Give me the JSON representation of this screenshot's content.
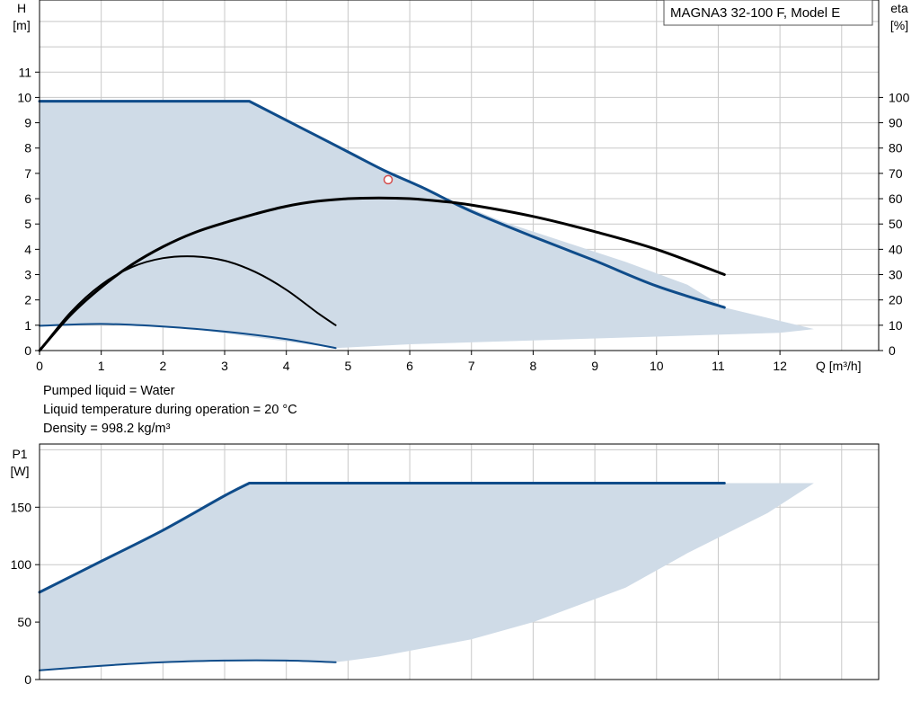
{
  "model_label": "MAGNA3 32-100 F, Model E",
  "notes": [
    "Pumped liquid = Water",
    "Liquid temperature during operation = 20 °C",
    "Density = 998.2 kg/m³"
  ],
  "colors": {
    "envelope": "#cfdbe7",
    "curve_blue": "#0f4c8a",
    "curve_black": "#000000",
    "duty_point": "#d24a4a"
  },
  "chart_data": [
    {
      "id": "head-chart",
      "type": "line",
      "x_axis": {
        "label": "Q [m³/h]",
        "range": [
          0,
          13.6
        ],
        "ticks": [
          0,
          1,
          2,
          3,
          4,
          5,
          6,
          7,
          8,
          9,
          10,
          11,
          12
        ]
      },
      "y_axis": {
        "label_line1": "H",
        "label_line2": "[m]",
        "range": [
          0,
          13.85
        ],
        "ticks": [
          0,
          1,
          2,
          3,
          4,
          5,
          6,
          7,
          8,
          9,
          10,
          11
        ]
      },
      "y2_axis": {
        "label_line1": "eta",
        "label_line2": "[%]",
        "range": [
          0,
          138.5
        ],
        "ticks": [
          0,
          10,
          20,
          30,
          40,
          50,
          60,
          70,
          80,
          90,
          100
        ]
      },
      "grid": true,
      "envelope": {
        "x": [
          0,
          3.4,
          4.5,
          5.6,
          6.5,
          7.5,
          8.5,
          9.5,
          10.5,
          11.1,
          12.55,
          12.0,
          10.0,
          8.0,
          6.0,
          4.8,
          2.5,
          0.9,
          0
        ],
        "y": [
          9.85,
          9.85,
          8.5,
          7.1,
          6.1,
          5.1,
          4.3,
          3.5,
          2.6,
          1.7,
          0.85,
          0.7,
          0.55,
          0.4,
          0.25,
          0.1,
          0.85,
          1.05,
          0.95
        ]
      },
      "series": [
        {
          "curve": "max-head",
          "axis": "H",
          "color": "blue",
          "x": [
            0,
            3.4,
            4.2,
            5.0,
            5.6,
            6.2,
            7.0,
            8.0,
            9.0,
            10.0,
            11.1
          ],
          "y": [
            9.85,
            9.85,
            8.85,
            7.85,
            7.1,
            6.45,
            5.5,
            4.5,
            3.55,
            2.55,
            1.7
          ]
        },
        {
          "curve": "min-head",
          "axis": "H",
          "color": "blue",
          "x": [
            0,
            1,
            2,
            3,
            4,
            4.8
          ],
          "y": [
            0.98,
            1.05,
            0.95,
            0.75,
            0.45,
            0.1
          ]
        },
        {
          "curve": "max-efficiency",
          "axis": "eta",
          "color": "black",
          "x": [
            0,
            0.5,
            1,
            1.5,
            2,
            2.5,
            3,
            3.5,
            4,
            4.5,
            5,
            5.5,
            6,
            6.5,
            7,
            8,
            9,
            10,
            11.1
          ],
          "y": [
            0,
            14,
            25,
            34,
            41,
            46.5,
            50.5,
            54,
            57,
            59,
            60,
            60.3,
            60,
            59,
            57.5,
            53,
            47,
            40,
            30
          ]
        },
        {
          "curve": "min-efficiency",
          "axis": "eta",
          "color": "black",
          "x": [
            0,
            0.5,
            1,
            1.5,
            2,
            2.5,
            3,
            3.5,
            4,
            4.5,
            4.8
          ],
          "y": [
            0,
            15,
            26,
            33,
            36.5,
            37.2,
            35.5,
            31,
            24,
            15,
            10
          ]
        }
      ],
      "duty_point": {
        "x": 5.65,
        "y": 6.75
      }
    },
    {
      "id": "power-chart",
      "type": "line",
      "x_axis": {
        "range": [
          0,
          13.6
        ],
        "ticks": [
          0,
          1,
          2,
          3,
          4,
          5,
          6,
          7,
          8,
          9,
          10,
          11,
          12
        ]
      },
      "y_axis": {
        "label_line1": "P1",
        "label_line2": "[W]",
        "range": [
          0,
          205
        ],
        "ticks": [
          0,
          50,
          100,
          150
        ]
      },
      "grid": true,
      "envelope": {
        "x": [
          0,
          1,
          2,
          3,
          3.4,
          11.1,
          12.55,
          11.8,
          10.5,
          9.5,
          8.0,
          7.0,
          5.5,
          4.8,
          3.5,
          2.0,
          0
        ],
        "y": [
          76,
          103,
          130,
          160,
          171,
          171,
          171,
          145,
          110,
          80,
          50,
          35,
          20,
          15,
          17,
          15,
          8
        ]
      },
      "series": [
        {
          "curve": "max-power",
          "color": "blue",
          "x": [
            0,
            1,
            2,
            3,
            3.4,
            11.1
          ],
          "y": [
            76,
            103,
            130,
            160,
            171,
            171
          ]
        },
        {
          "curve": "min-power",
          "color": "blue",
          "x": [
            0,
            1,
            2,
            3,
            4,
            4.8
          ],
          "y": [
            8,
            12,
            15,
            16.5,
            16.5,
            15
          ]
        }
      ]
    }
  ]
}
